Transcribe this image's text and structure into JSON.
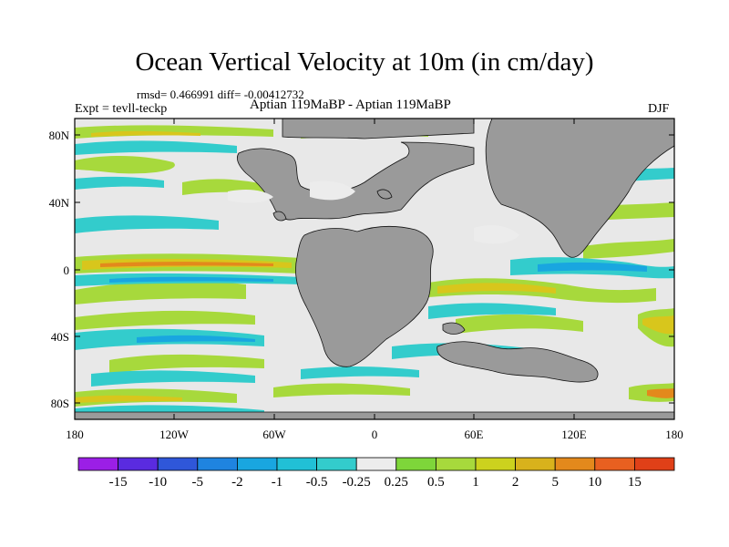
{
  "title": "Ocean Vertical Velocity at 10m (in cm/day)",
  "stats_line": "rmsd= 0.466991 diff= -0.00412732",
  "experiment": "Expt = tevll-teckp",
  "subtitle": "Aptian   119MaBP - Aptian   119MaBP",
  "season": "DJF",
  "colors": {
    "land": "#9a9a9a",
    "ocean_neutral": "#e8e8e8",
    "pos_weak": "#a7d93c",
    "pos_mid": "#d8c61c",
    "pos_strong": "#e3891c",
    "neg_weak": "#33cccc",
    "neg_mid": "#19a6e0"
  },
  "map": {
    "lat_labels": [
      "80N",
      "40N",
      "0",
      "40S",
      "80S"
    ],
    "lon_labels": [
      "180",
      "120W",
      "60W",
      "0",
      "60E",
      "120E",
      "180"
    ]
  },
  "colorbar": {
    "labels": [
      "-15",
      "-10",
      "-5",
      "-2",
      "-1",
      "-0.5",
      "-0.25",
      "0.25",
      "0.5",
      "1",
      "2",
      "5",
      "10",
      "15"
    ],
    "colors": [
      "#9b1fe6",
      "#5a2be0",
      "#2f57d9",
      "#1f84e0",
      "#19a6e0",
      "#21c0d6",
      "#33cccc",
      "#ececec",
      "#7ed63a",
      "#a7d93c",
      "#ccd21e",
      "#d8b21c",
      "#e3891c",
      "#e86020",
      "#e04018"
    ]
  }
}
